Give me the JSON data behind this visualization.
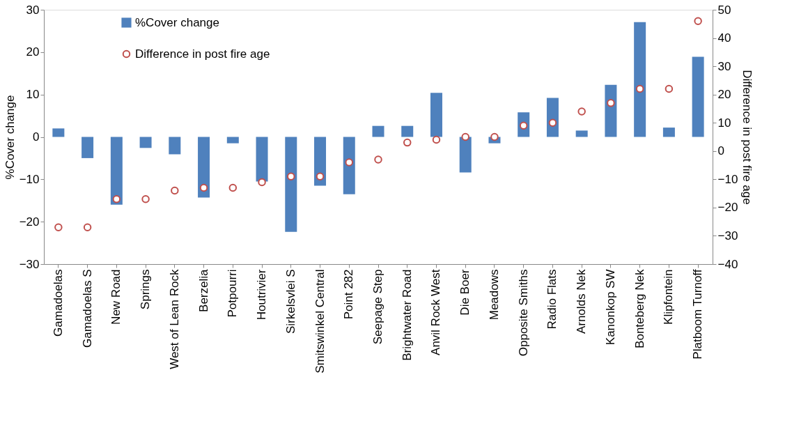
{
  "chart_data": {
    "type": "bar",
    "categories": [
      "Gamadoelas",
      "Gamadoelas S",
      "New Road",
      "Springs",
      "West of Lean Rock",
      "Berzelia",
      "Potpourri",
      "Houtrivier",
      "Sirkelsvlei S",
      "Smitswinkel Central",
      "Point 282",
      "Seepage Step",
      "Brightwater Road",
      "Anvil Rock West",
      "Die Boer",
      "Meadows",
      "Opposite Smiths",
      "Radio Flats",
      "Arnolds Nek",
      "Kanonkop SW",
      "Bonteberg Nek",
      "Klipfontein",
      "Platboom Turnoff"
    ],
    "series": [
      {
        "name": "%Cover change",
        "color": "#4f81bd",
        "values": [
          2.0,
          -5.0,
          -16.0,
          -2.6,
          -4.1,
          -14.3,
          -1.5,
          -10.5,
          -22.4,
          -11.5,
          -13.5,
          2.6,
          2.6,
          10.4,
          -8.4,
          -1.5,
          5.8,
          9.2,
          1.5,
          12.3,
          27.1,
          2.2,
          18.9
        ]
      },
      {
        "name": "Difference in post fire age",
        "type": "scatter",
        "axis": "y2",
        "color": "#c0504d",
        "marker": "circle",
        "values": [
          -27,
          -27,
          -17,
          -17,
          -14,
          -13,
          -13,
          -11,
          -9,
          -9,
          -4,
          -3,
          3,
          4,
          5,
          5,
          9,
          10,
          14,
          17,
          22,
          22,
          46
        ]
      }
    ],
    "ylabel": "%Cover change",
    "y2label": "Difference in post fire age",
    "ylim": [
      -30,
      30
    ],
    "yticks": [
      -30,
      -20,
      -10,
      0,
      10,
      20,
      30
    ],
    "y2lim": [
      -40,
      50
    ],
    "y2ticks": [
      -40,
      -30,
      -20,
      -10,
      0,
      10,
      20,
      30,
      40,
      50
    ],
    "grid": false,
    "legend": "top left"
  }
}
